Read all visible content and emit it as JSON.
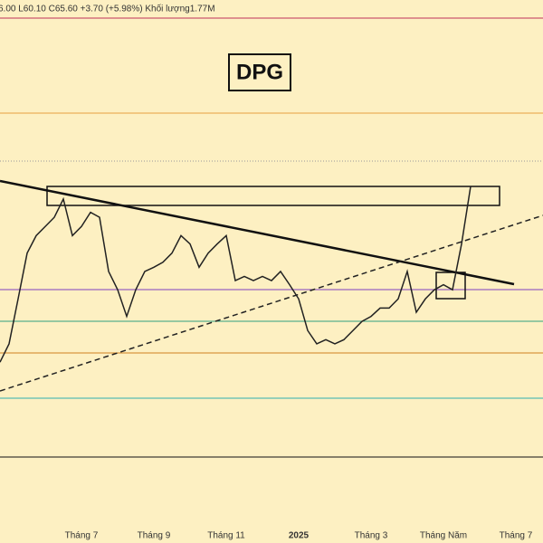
{
  "chart_data": {
    "type": "line",
    "subtitle": "6.00 L60.10 C65.60 +3.70 (+5.98%) Khối lượng1.77M",
    "title": "DPG",
    "x_labels": [
      "Tháng 7",
      "Tháng 9",
      "Tháng 11",
      "2025",
      "Tháng 3",
      "Tháng Năm",
      "Tháng 7"
    ],
    "series": [
      {
        "color": "#222222",
        "values": [
          44.5,
          46.7,
          52.1,
          57.6,
          59.7,
          60.8,
          61.9,
          64.1,
          59.7,
          60.8,
          62.5,
          61.9,
          55.4,
          53.2,
          50.0,
          53.2,
          55.4,
          55.9,
          56.5,
          57.6,
          59.7,
          58.7,
          55.9,
          57.6,
          58.7,
          59.7,
          54.3,
          54.8,
          54.3,
          54.8,
          54.3,
          55.4,
          53.8,
          52.1,
          48.3,
          46.7,
          47.2,
          46.7,
          47.2,
          48.3,
          49.4,
          50.0,
          51.0,
          51.0,
          52.1,
          55.4,
          50.5,
          52.1,
          53.2,
          53.8,
          53.2,
          58.7,
          65.6
        ]
      }
    ],
    "ylim": [
      38,
      88
    ]
  }
}
